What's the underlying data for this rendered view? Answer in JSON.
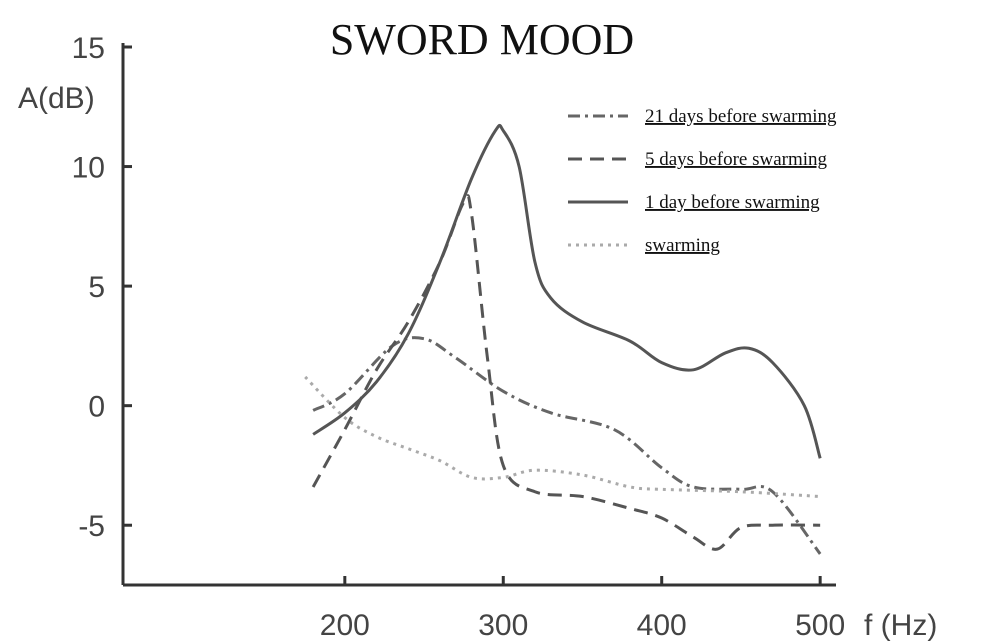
{
  "chart_data": {
    "type": "line",
    "title": "SWORD MOOD",
    "y_label": "A(dB)",
    "x_label": "f (Hz)",
    "xlim": [
      60,
      510
    ],
    "ylim": [
      -7.5,
      15
    ],
    "xticks": [
      200,
      300,
      400,
      500
    ],
    "yticks": [
      -5,
      0,
      5,
      10,
      15
    ],
    "grid": false,
    "legend": "upper right",
    "series": [
      {
        "name": "21 days before swarming",
        "color": "#666666",
        "dash": "dashdot",
        "x": [
          180,
          200,
          230,
          250,
          270,
          300,
          330,
          370,
          400,
          420,
          450,
          470,
          500
        ],
        "values": [
          -0.2,
          0.5,
          2.5,
          2.8,
          2.0,
          0.6,
          -0.3,
          -1.0,
          -2.6,
          -3.4,
          -3.5,
          -3.6,
          -6.2
        ]
      },
      {
        "name": "5 days before swarming",
        "color": "#555555",
        "dash": "dashed",
        "x": [
          180,
          200,
          220,
          240,
          260,
          275,
          280,
          290,
          300,
          320,
          350,
          380,
          400,
          420,
          435,
          450,
          470,
          500
        ],
        "values": [
          -3.4,
          -1.0,
          1.5,
          3.5,
          6.0,
          8.5,
          8.0,
          2.0,
          -2.5,
          -3.6,
          -3.8,
          -4.3,
          -4.7,
          -5.5,
          -6.0,
          -5.1,
          -5.0,
          -5.0
        ]
      },
      {
        "name": "1 day before swarming",
        "color": "#555555",
        "dash": "solid",
        "x": [
          180,
          200,
          220,
          240,
          260,
          280,
          295,
          300,
          310,
          320,
          330,
          350,
          380,
          400,
          420,
          440,
          455,
          470,
          490,
          500
        ],
        "values": [
          -1.2,
          -0.3,
          1.0,
          3.0,
          6.0,
          9.5,
          11.5,
          11.5,
          10.0,
          6.0,
          4.5,
          3.5,
          2.7,
          1.8,
          1.5,
          2.2,
          2.4,
          1.8,
          0.0,
          -2.2
        ]
      },
      {
        "name": "swarming",
        "color": "#aaaaaa",
        "dash": "dotted",
        "x": [
          175,
          200,
          220,
          240,
          260,
          280,
          300,
          320,
          350,
          380,
          400,
          450,
          500
        ],
        "values": [
          1.2,
          -0.5,
          -1.3,
          -1.8,
          -2.3,
          -3.0,
          -3.0,
          -2.7,
          -2.9,
          -3.4,
          -3.5,
          -3.6,
          -3.8
        ]
      }
    ]
  }
}
